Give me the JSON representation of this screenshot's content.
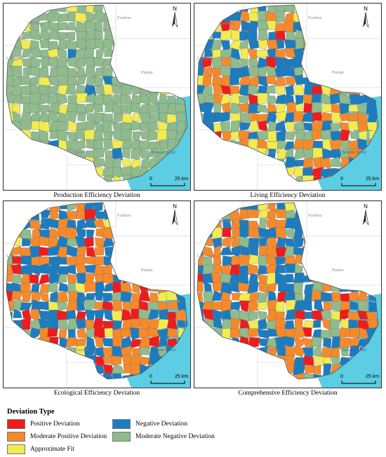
{
  "panels": [
    {
      "title": "Production Efficiency Deviation",
      "mix": [
        0,
        0,
        14,
        1,
        85
      ]
    },
    {
      "title": "Living Efficiency Deviation",
      "mix": [
        5,
        22,
        20,
        28,
        25
      ]
    },
    {
      "title": "Ecological Efficiency Deviation",
      "mix": [
        10,
        40,
        4,
        36,
        10
      ]
    },
    {
      "title": "Comprehensive Efficiency Deviation",
      "mix": [
        9,
        38,
        5,
        34,
        14
      ]
    }
  ],
  "map_labels": {
    "city_1": "Sanming",
    "city_2": "Fuzhou",
    "city_3": "Longyan",
    "city_4": "Putian",
    "city_5": "Xiamen",
    "sea": "Taiwan Strait",
    "north": "N",
    "scale_zero": "0",
    "scale_km": "25 km"
  },
  "legend": {
    "title": "Deviation Type",
    "items": [
      {
        "key": "positive",
        "label": "Positive Deviation",
        "color": "#ee1c1c"
      },
      {
        "key": "moderate_positive",
        "label": "Moderate Positive Deviation",
        "color": "#f68a2b"
      },
      {
        "key": "approximate",
        "label": "Approximate Fit",
        "color": "#f2ec52"
      },
      {
        "key": "negative",
        "label": "Negative Deviation",
        "color": "#1c7cc0"
      },
      {
        "key": "moderate_negative",
        "label": "Moderate Negative Deviation",
        "color": "#8fbb8d"
      }
    ]
  },
  "colors": {
    "sea": "#5ccde2",
    "land_outline": "#bbbbbb",
    "border": "#555555"
  }
}
